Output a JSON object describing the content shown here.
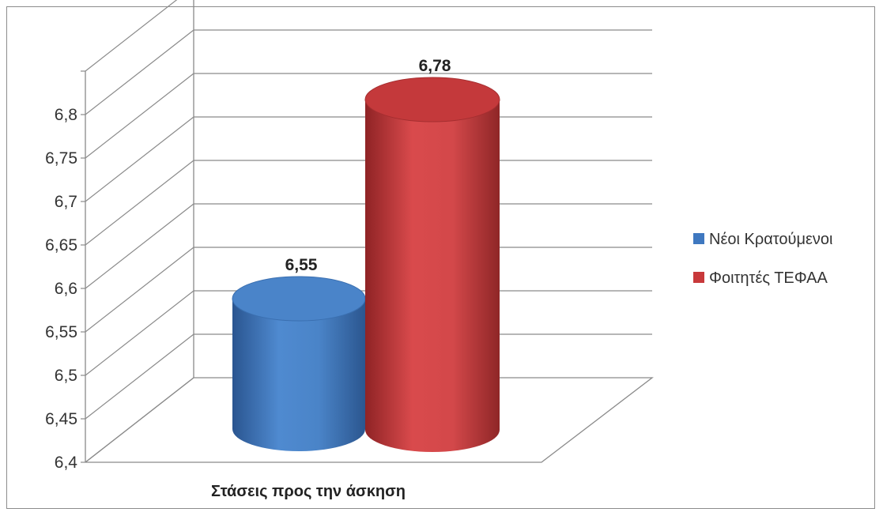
{
  "chart_data": {
    "type": "bar",
    "style": "3d-cylinder",
    "categories": [
      "Στάσεις προς την άσκηση"
    ],
    "series": [
      {
        "name": "Νέοι Κρατούμενοι",
        "values": [
          6.55
        ],
        "color": "#3f78c0"
      },
      {
        "name": "Φοιτητές ΤΕΦΑΑ",
        "values": [
          6.78
        ],
        "color": "#c8393b"
      }
    ],
    "data_labels": [
      "6,55",
      "6,78"
    ],
    "y_ticks": [
      "6,4",
      "6,45",
      "6,5",
      "6,55",
      "6,6",
      "6,65",
      "6,7",
      "6,75",
      "6,8"
    ],
    "ylim": [
      6.4,
      6.85
    ],
    "grid": true,
    "legend_position": "right"
  }
}
